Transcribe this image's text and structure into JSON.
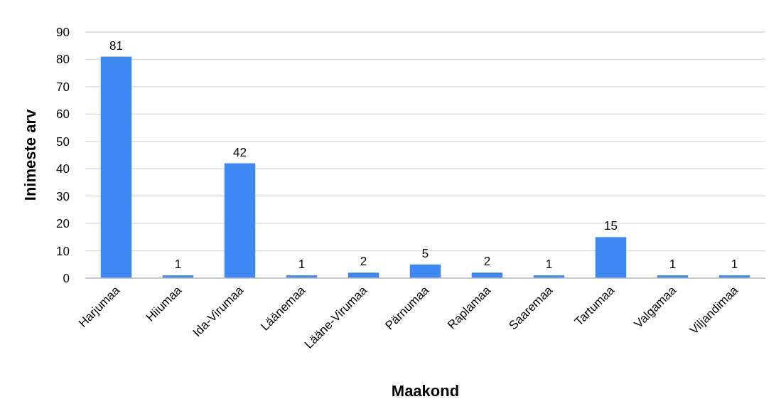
{
  "chart_data": {
    "type": "bar",
    "xlabel": "Maakond",
    "ylabel": "Inimeste arv",
    "categories": [
      "Harjumaa",
      "Hiiumaa",
      "Ida-Virumaa",
      "Läänemaa",
      "Lääne-Virumaa",
      "Pärnumaa",
      "Raplamaa",
      "Saaremaa",
      "Tartumaa",
      "Valgamaa",
      "Viljandimaa"
    ],
    "values": [
      81,
      1,
      42,
      1,
      2,
      5,
      2,
      1,
      15,
      1,
      1
    ],
    "color": "#3d88f2",
    "ylim": [
      0,
      90
    ],
    "yticks": [
      0,
      10,
      20,
      30,
      40,
      50,
      60,
      70,
      80,
      90
    ],
    "grid": "y",
    "data_labels": true
  }
}
